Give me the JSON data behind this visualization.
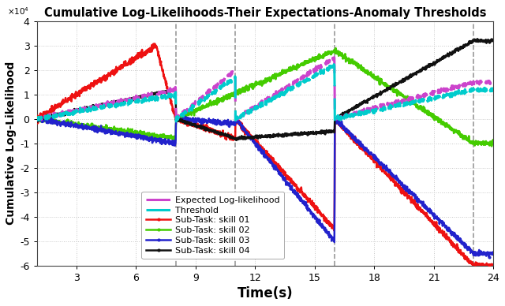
{
  "title": "Cumulative Log-Likelihoods-Their Expectations-Anomaly Thresholds",
  "xlabel": "Time(s)",
  "ylabel": "Cumulative Log-Likelihood",
  "ylim": [
    -60000,
    40000
  ],
  "xlim": [
    1,
    24
  ],
  "xticks": [
    3,
    6,
    9,
    12,
    15,
    18,
    21,
    24
  ],
  "yticks": [
    -60000,
    -50000,
    -40000,
    -30000,
    -20000,
    -10000,
    0,
    10000,
    20000,
    30000,
    40000
  ],
  "vlines": [
    8.0,
    11.0,
    16.0,
    23.0
  ],
  "vline_color": "#999999",
  "background_color": "#ffffff",
  "grid_color": "#c8c8c8",
  "colors": {
    "expected": "#cc44cc",
    "threshold": "#00cccc",
    "skill01": "#ee1111",
    "skill02": "#44cc00",
    "skill03": "#2222cc",
    "skill04": "#111111"
  },
  "legend_labels": [
    "Expected Log-likelihood",
    "Threshold",
    "Sub-Task: skill 01",
    "Sub-Task: skill 02",
    "Sub-Task: skill 03",
    "Sub-Task: skill 04"
  ],
  "v1": 8.0,
  "v2": 11.0,
  "v3": 16.0,
  "v4": 23.0,
  "tstart": 1.0,
  "tend": 24.0
}
